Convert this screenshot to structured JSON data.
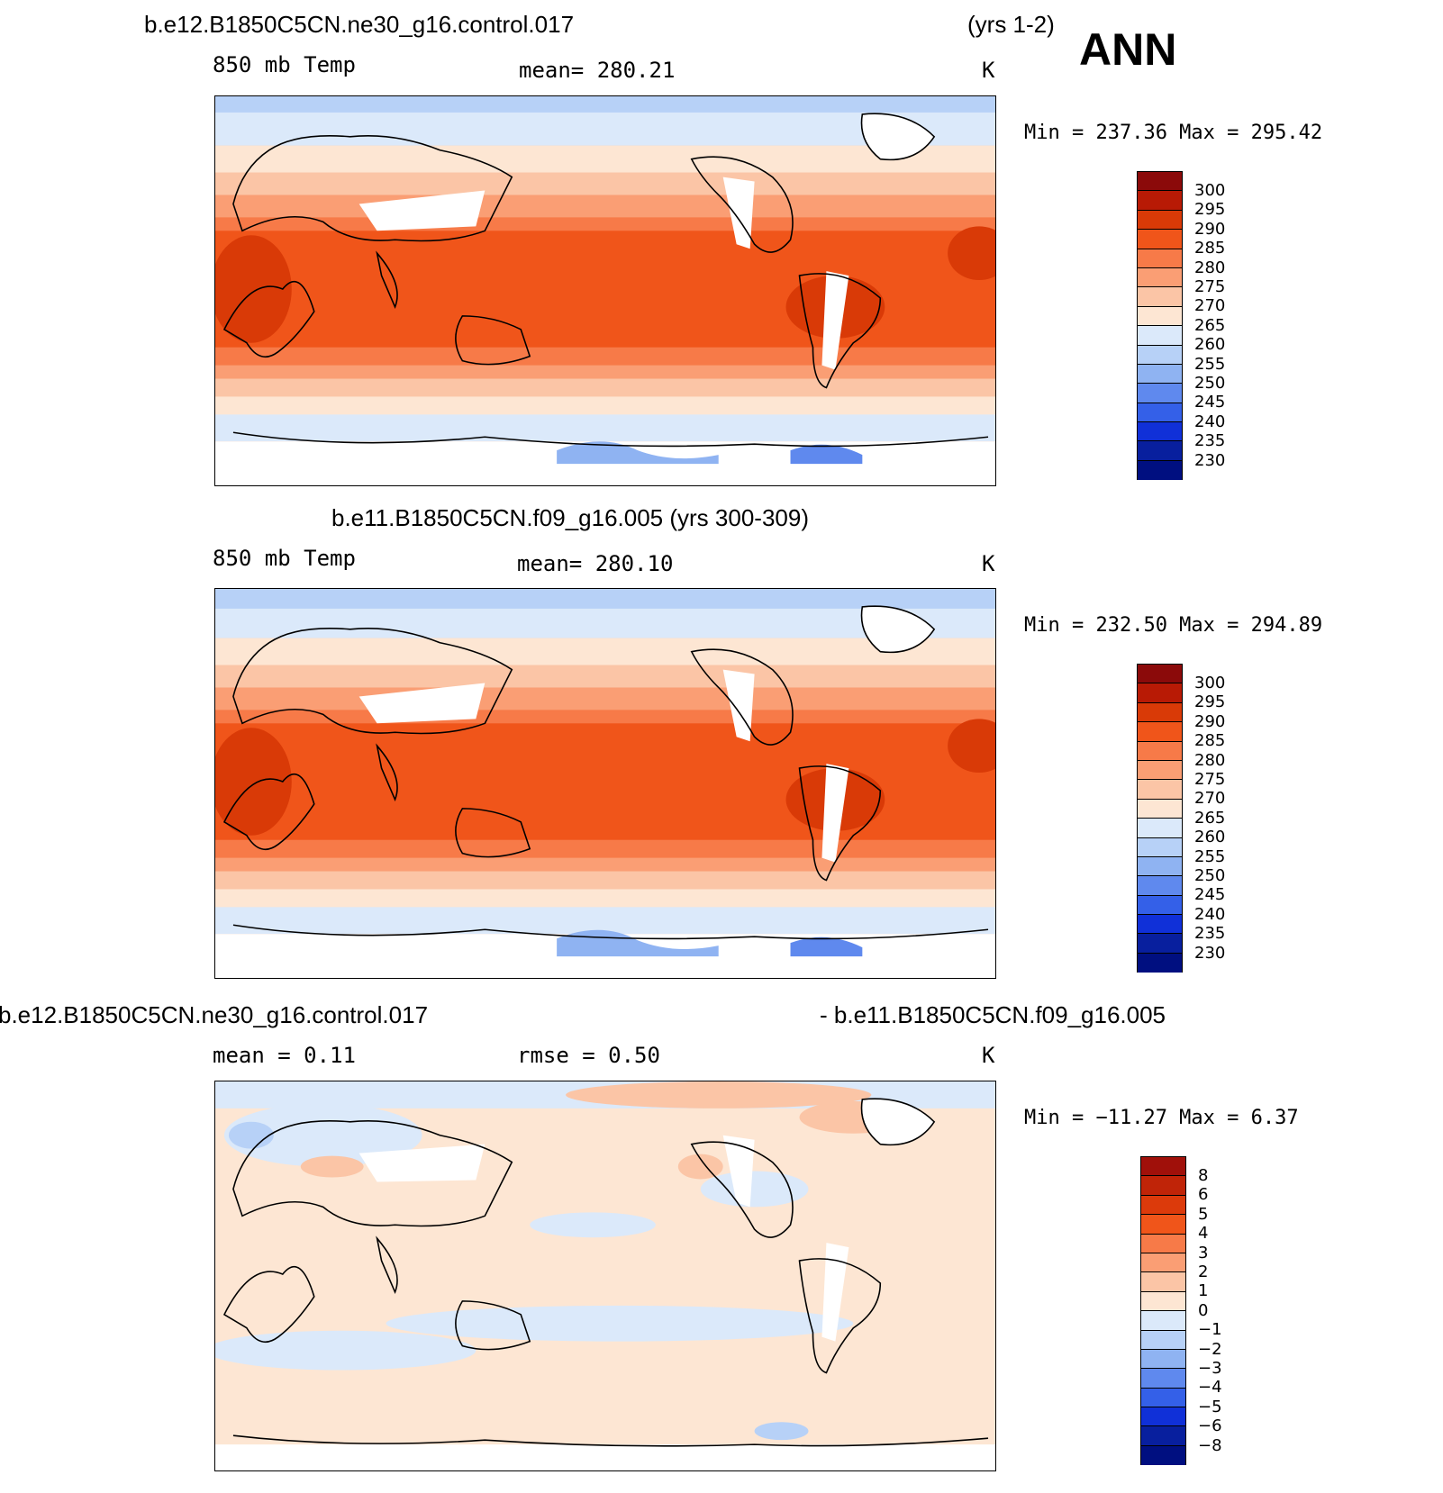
{
  "header": {
    "case_title": "b.e12.B1850C5CN.ne30_g16.control.017",
    "case_years": "(yrs 1-2)",
    "season": "ANN"
  },
  "panels": [
    {
      "id": "top",
      "variable": "850 mb Temp",
      "mean_text": "mean= 280.21",
      "units": "K",
      "minmax_text": "Min = 237.36 Max = 295.42"
    },
    {
      "id": "middle",
      "title": "b.e11.B1850C5CN.f09_g16.005 (yrs 300-309)",
      "variable": "850 mb Temp",
      "mean_text": "mean= 280.10",
      "units": "K",
      "minmax_text": "Min = 232.50 Max = 294.89"
    },
    {
      "id": "bottom",
      "title_left": "b.e12.B1850C5CN.ne30_g16.control.017",
      "title_right": "- b.e11.B1850C5CN.f09_g16.005",
      "mean_text": "mean =    0.11",
      "rmse_text": "rmse =    0.50",
      "units": "K",
      "minmax_text": "Min = −11.27 Max =    6.37"
    }
  ],
  "colorbars": {
    "temp": {
      "labels": [
        "300",
        "295",
        "290",
        "285",
        "280",
        "275",
        "270",
        "265",
        "260",
        "255",
        "250",
        "245",
        "240",
        "235",
        "230"
      ],
      "colors": [
        "#8b0a0a",
        "#b81a05",
        "#d93a07",
        "#f0551a",
        "#f77a48",
        "#fa9e74",
        "#fbc5a6",
        "#fde6d3",
        "#dbe9fa",
        "#b7d1f7",
        "#8fb3f2",
        "#5f89ee",
        "#3460e8",
        "#1030d8",
        "#081f9e",
        "#000f80"
      ]
    },
    "diff": {
      "labels": [
        "8",
        "6",
        "5",
        "4",
        "3",
        "2",
        "1",
        "0",
        "−1",
        "−2",
        "−3",
        "−4",
        "−5",
        "−6",
        "−8"
      ],
      "colors": [
        "#a0100a",
        "#c02408",
        "#dc3a0b",
        "#f0551a",
        "#f77a48",
        "#fa9e74",
        "#fbc5a6",
        "#fde6d3",
        "#dbe9fa",
        "#b7d1f7",
        "#8fb3f2",
        "#5f89ee",
        "#3460e8",
        "#1030d8",
        "#081f9e",
        "#000f80"
      ]
    }
  }
}
